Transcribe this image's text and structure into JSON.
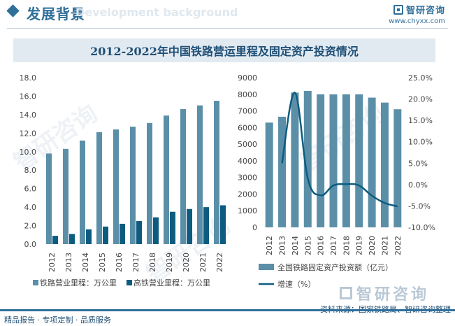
{
  "header": {
    "title": "发展背景",
    "watermark": "Development background",
    "brand_name": "智研咨询",
    "brand_url": "www.chyxx.com"
  },
  "title": "2012-2022年中国铁路营运里程及固定资产投资情况",
  "footer": {
    "left": "精品报告 · 专项定制 · 品质服务",
    "source": "资料来源：国家铁路局、智研咨询整理",
    "logo_text": "智研咨询"
  },
  "watermark_text": "智研咨询",
  "colors": {
    "bar_light": "#5b8fa8",
    "bar_dark": "#0d5c80",
    "line": "#0d5c80",
    "axis_text": "#444444",
    "title_bg": "#e1e9f1",
    "brand": "#2f6f9a"
  },
  "chart_data": [
    {
      "type": "bar",
      "categories": [
        "2012",
        "2013",
        "2014",
        "2015",
        "2016",
        "2017",
        "2018",
        "2019",
        "2020",
        "2021",
        "2022"
      ],
      "series": [
        {
          "name": "铁路营业里程：万公里",
          "values": [
            9.8,
            10.3,
            11.2,
            12.1,
            12.4,
            12.7,
            13.1,
            13.9,
            14.6,
            15.0,
            15.5
          ]
        },
        {
          "name": "高铁营业里程：万公里",
          "values": [
            0.9,
            1.1,
            1.6,
            1.9,
            2.2,
            2.5,
            2.9,
            3.5,
            3.8,
            4.0,
            4.2
          ]
        }
      ],
      "ylim": [
        0,
        18
      ],
      "yticks": [
        "0.0",
        "2.0",
        "4.0",
        "6.0",
        "8.0",
        "10.0",
        "12.0",
        "14.0",
        "16.0",
        "18.0"
      ],
      "legend_position": "bottom"
    },
    {
      "type": "bar+line",
      "categories": [
        "2012",
        "2013",
        "2014",
        "2015",
        "2016",
        "2017",
        "2018",
        "2019",
        "2020",
        "2021",
        "2022"
      ],
      "series": [
        {
          "name": "全国铁路固定资产投资额（亿元）",
          "type": "bar",
          "axis": "left",
          "values": [
            6300,
            6650,
            8100,
            8200,
            8000,
            8000,
            8000,
            8000,
            7800,
            7500,
            7100
          ]
        },
        {
          "name": "增速（%）",
          "type": "line",
          "axis": "right",
          "values": [
            null,
            5.0,
            21.5,
            1.5,
            -2.5,
            -0.2,
            0.1,
            -0.2,
            -2.6,
            -4.3,
            -5.1
          ]
        }
      ],
      "ylim_left": [
        0,
        9000
      ],
      "yticks_left": [
        "0",
        "1000",
        "2000",
        "3000",
        "4000",
        "5000",
        "6000",
        "7000",
        "8000",
        "9000"
      ],
      "ylim_right": [
        -10,
        25
      ],
      "yticks_right": [
        "-10.0%",
        "-5.0%",
        "0.0%",
        "5.0%",
        "10.0%",
        "15.0%",
        "20.0%",
        "25.0%"
      ],
      "legend_position": "bottom"
    }
  ]
}
